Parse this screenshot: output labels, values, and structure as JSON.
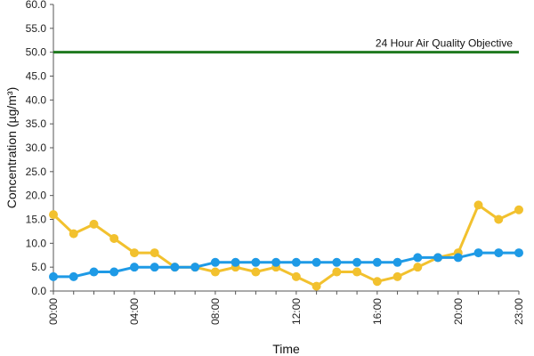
{
  "chart_data": {
    "type": "line",
    "xlabel": "Time",
    "ylabel": "Concentration (µg/m³)",
    "ylim": [
      0,
      60
    ],
    "yticks": [
      "0.0",
      "5.0",
      "10.0",
      "15.0",
      "20.0",
      "25.0",
      "30.0",
      "35.0",
      "40.0",
      "45.0",
      "50.0",
      "55.0",
      "60.0"
    ],
    "x": [
      "00:00",
      "01:00",
      "02:00",
      "03:00",
      "04:00",
      "05:00",
      "06:00",
      "07:00",
      "08:00",
      "09:00",
      "10:00",
      "11:00",
      "12:00",
      "13:00",
      "14:00",
      "15:00",
      "16:00",
      "17:00",
      "18:00",
      "19:00",
      "20:00",
      "21:00",
      "22:00",
      "23:00"
    ],
    "xtick_labels": [
      "00:00",
      "04:00",
      "08:00",
      "12:00",
      "16:00",
      "20:00",
      "23:00"
    ],
    "grid": false,
    "series": [
      {
        "color": "#f2c12e",
        "values": [
          16,
          12,
          14,
          11,
          8,
          8,
          5,
          5,
          4,
          5,
          4,
          5,
          3,
          1,
          4,
          4,
          2,
          3,
          5,
          7,
          8,
          18,
          15,
          17
        ]
      },
      {
        "color": "#1e9ae6",
        "values": [
          3,
          3,
          4,
          4,
          5,
          5,
          5,
          5,
          6,
          6,
          6,
          6,
          6,
          6,
          6,
          6,
          6,
          6,
          7,
          7,
          7,
          8,
          8,
          8
        ]
      }
    ],
    "objective": {
      "value": 50,
      "label": "24 Hour Air Quality Objective",
      "color": "#1f7a1f"
    }
  }
}
